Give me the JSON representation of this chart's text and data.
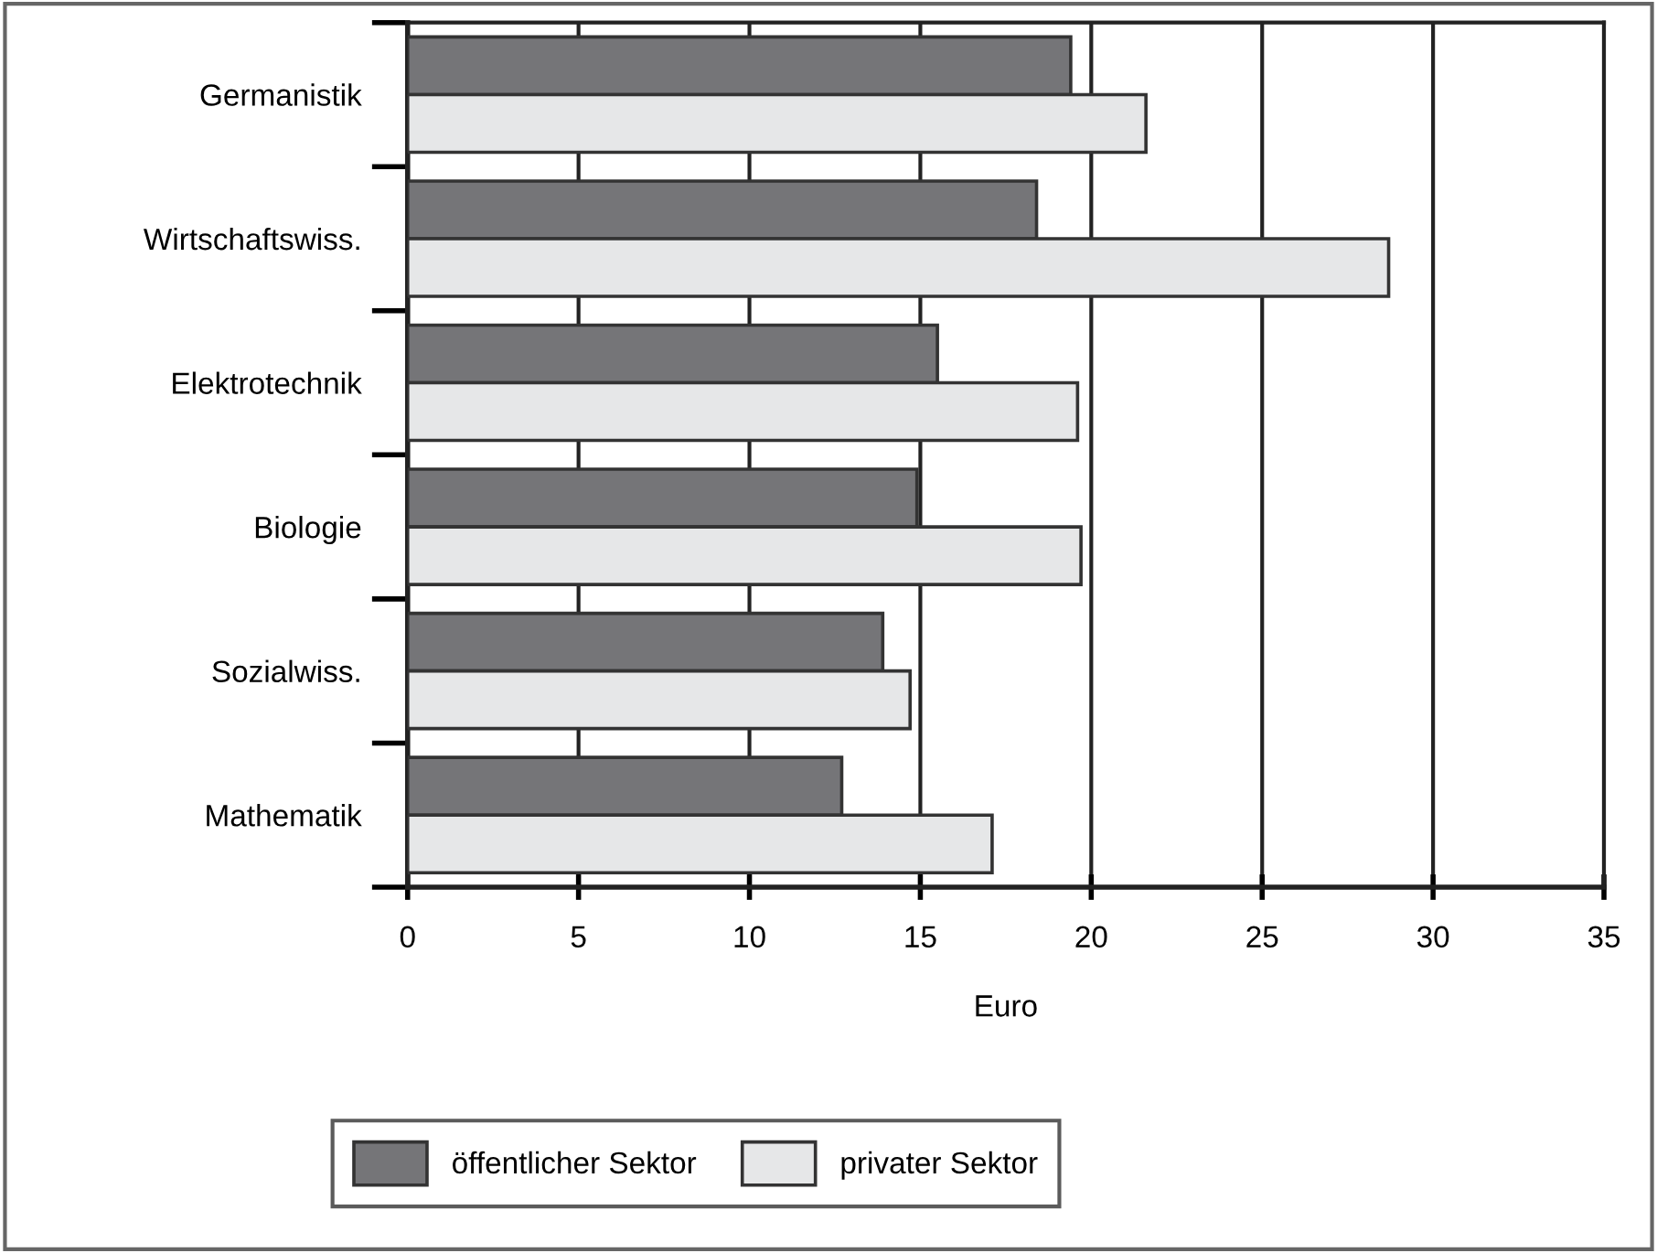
{
  "chart_data": {
    "type": "bar",
    "orientation": "horizontal",
    "xlabel": "Euro",
    "categories": [
      "Germanistik",
      "Wirtschaftswiss.",
      "Elektrotechnik",
      "Biologie",
      "Sozialwiss.",
      "Mathematik"
    ],
    "series": [
      {
        "name": "öffentlicher Sektor",
        "color": "#757578",
        "values": [
          19.4,
          18.4,
          15.5,
          14.9,
          13.9,
          12.7
        ]
      },
      {
        "name": "privater Sektor",
        "color": "#e6e7e8",
        "values": [
          21.6,
          28.7,
          19.6,
          19.7,
          14.7,
          17.1
        ]
      }
    ],
    "xlim": [
      0,
      35
    ],
    "xticks": [
      0,
      5,
      10,
      15,
      20,
      25,
      30,
      35
    ],
    "grid": "x",
    "legend": "bottom"
  }
}
